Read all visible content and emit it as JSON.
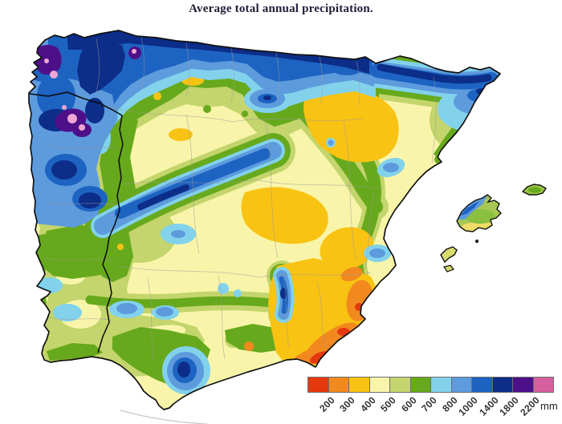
{
  "title": "Average total annual precipitation.",
  "map": {
    "sea_color": "#ffffff",
    "coast_color": "#111111"
  },
  "legend": {
    "unit": "mm",
    "colors": [
      "#e6380e",
      "#f2891f",
      "#f9c313",
      "#f8f5aa",
      "#c3d56c",
      "#67a91c",
      "#82d2ec",
      "#5d9bdd",
      "#1d63c2",
      "#0c2d88",
      "#4d1089",
      "#d55f9f"
    ],
    "boundaries": [
      "200",
      "300",
      "400",
      "500",
      "600",
      "700",
      "800",
      "1000",
      "1400",
      "1800",
      "2200"
    ]
  }
}
